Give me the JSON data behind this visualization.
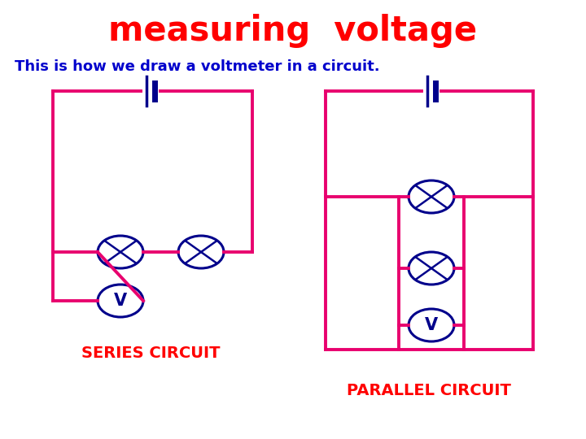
{
  "title": "measuring  voltage",
  "subtitle": "This is how we draw a voltmeter in a circuit.",
  "title_color": "#ff0000",
  "subtitle_color": "#0000cc",
  "circuit_color": "#e8006e",
  "component_color": "#00008b",
  "label_color": "#ff0000",
  "series_label": "SERIES CIRCUIT",
  "parallel_label": "PARALLEL CIRCUIT",
  "background_color": "#ffffff",
  "lw": 2.8
}
